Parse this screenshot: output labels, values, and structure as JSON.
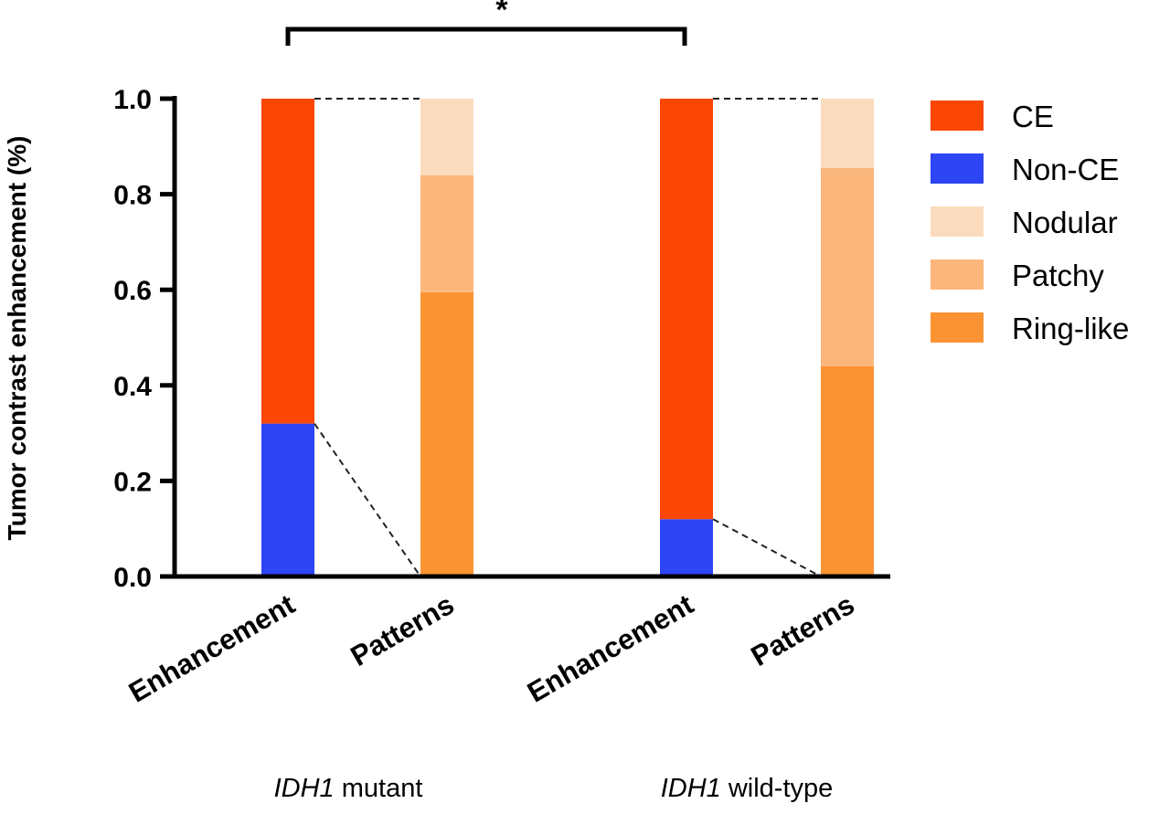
{
  "chart_data": {
    "type": "bar",
    "stacked": true,
    "ylabel": "Tumor contrast enhancement (%)",
    "ylim": [
      0,
      1.0
    ],
    "yticks": [
      "0.0",
      "0.2",
      "0.4",
      "0.6",
      "0.8",
      "1.0"
    ],
    "categories": [
      "Enhancement",
      "Patterns",
      "Enhancement",
      "Patterns"
    ],
    "groups": [
      {
        "italic": "IDH1",
        "rest": " mutant"
      },
      {
        "italic": "IDH1",
        "rest": " wild-type"
      }
    ],
    "significance": "*",
    "series": [
      {
        "name": "Non-CE",
        "color": "#2e45f5",
        "values": [
          0.32,
          0,
          0.12,
          0
        ]
      },
      {
        "name": "CE",
        "color": "#fc4604",
        "values": [
          0.68,
          0,
          0.88,
          0
        ]
      },
      {
        "name": "Ring-like",
        "color": "#fb9333",
        "values": [
          0,
          0.595,
          0,
          0.44
        ]
      },
      {
        "name": "Patchy",
        "color": "#fbb77b",
        "values": [
          0,
          0.245,
          0,
          0.415
        ]
      },
      {
        "name": "Nodular",
        "color": "#fbdbbd",
        "values": [
          0,
          0.16,
          0,
          0.145
        ]
      }
    ],
    "legend": [
      "CE",
      "Non-CE",
      "Nodular",
      "Patchy",
      "Ring-like"
    ],
    "legend_position": "right",
    "grid": false
  }
}
